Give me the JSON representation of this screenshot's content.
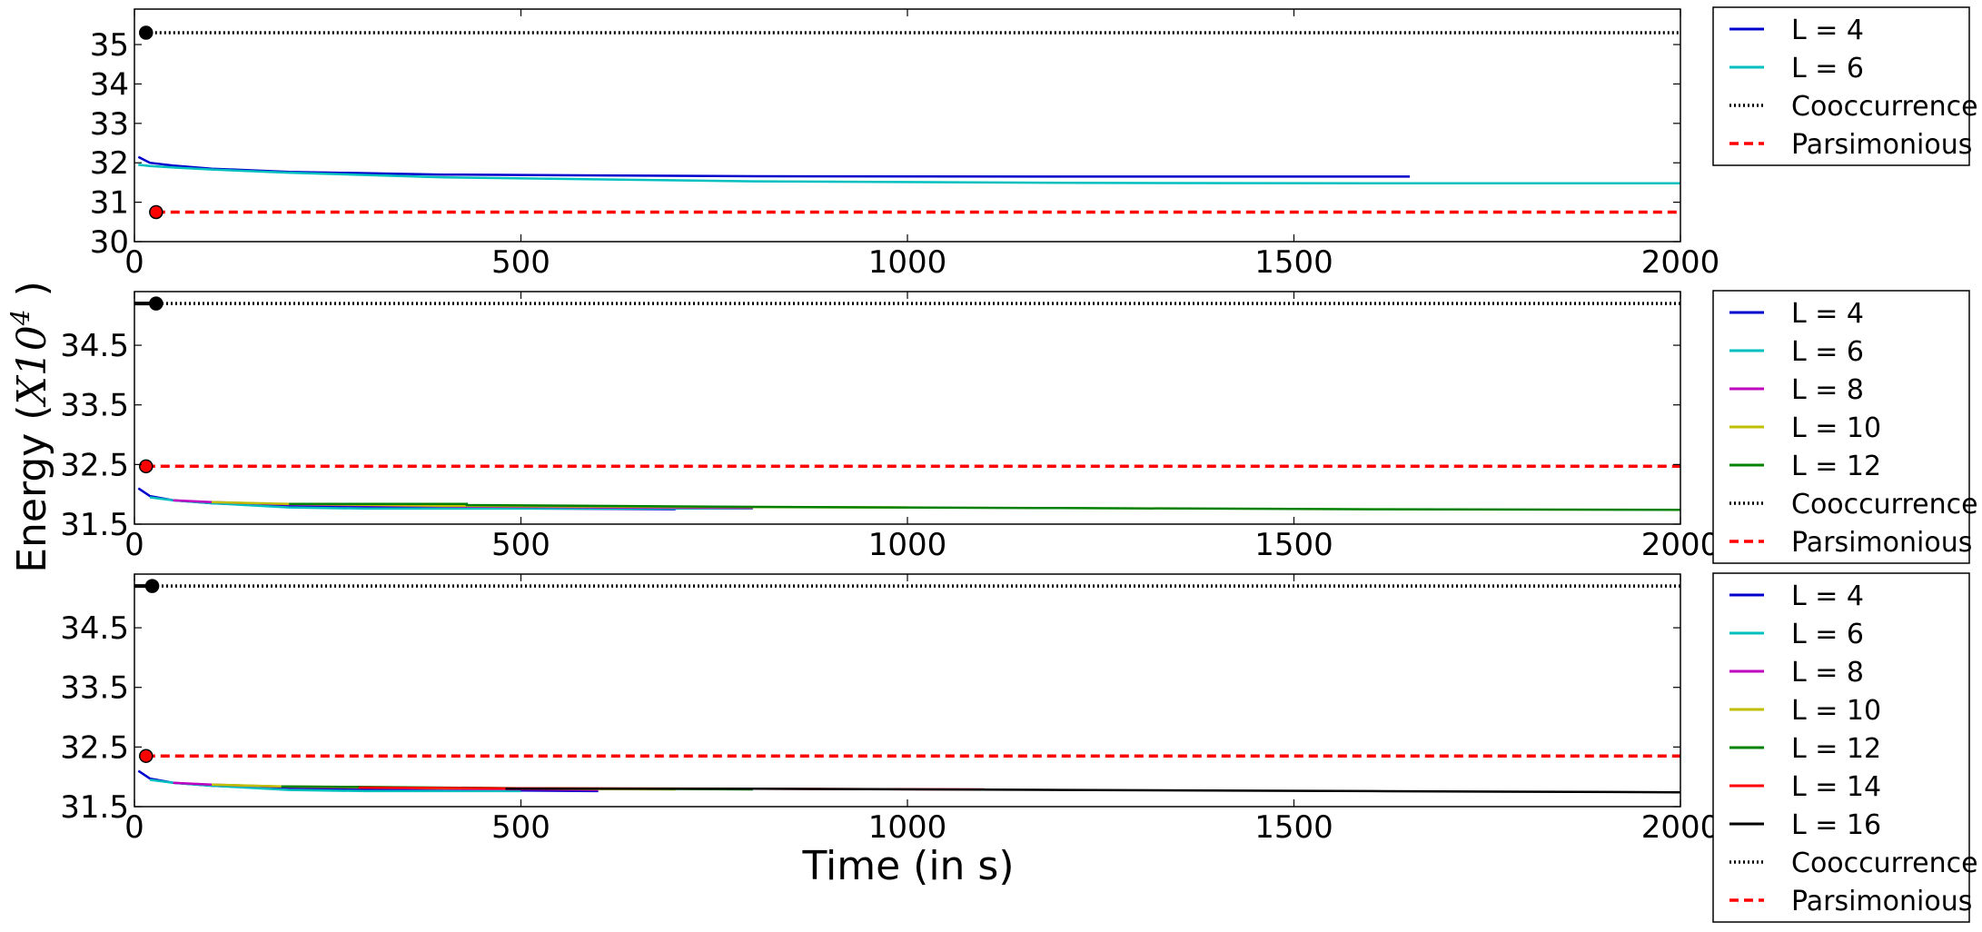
{
  "figure": {
    "xlabel": "Time (in s)",
    "ylabel_prefix": "Energy (",
    "ylabel_math": "X10",
    "ylabel_exp": "4",
    "ylabel_suffix": " )"
  },
  "colors": {
    "L4": "#0000cc",
    "L6": "#00bfbf",
    "L8": "#bf00bf",
    "L10": "#bfbf00",
    "L12": "#008000",
    "L14": "#ff0000",
    "L16": "#000000",
    "cooccurrence": "#000000",
    "parsimonious": "#ff0000"
  },
  "chart_data": [
    {
      "type": "line",
      "xlim": [
        0,
        2000
      ],
      "ylim": [
        30,
        35.9
      ],
      "xticks": [
        0,
        500,
        1000,
        1500,
        2000
      ],
      "xtick_labels": [
        "0",
        "500",
        "1000",
        "1500",
        "2000"
      ],
      "yticks": [
        30,
        31,
        32,
        33,
        34,
        35
      ],
      "ytick_labels": [
        "30",
        "31",
        "32",
        "33",
        "34",
        "35"
      ],
      "grid": false,
      "legend_position": "outside-right",
      "legend": [
        "L = 4",
        "L = 6",
        "Cooccurrence",
        "Parsimonious"
      ],
      "series": [
        {
          "name": "L = 4",
          "color_key": "L4",
          "style": "solid",
          "x": [
            5,
            20,
            50,
            100,
            200,
            400,
            800,
            1200,
            1650
          ],
          "y": [
            32.15,
            32.0,
            31.93,
            31.85,
            31.77,
            31.7,
            31.66,
            31.65,
            31.65
          ]
        },
        {
          "name": "L = 6",
          "color_key": "L6",
          "style": "solid",
          "x": [
            5,
            20,
            50,
            100,
            200,
            400,
            800,
            1200,
            1600,
            2000
          ],
          "y": [
            31.95,
            31.92,
            31.88,
            31.83,
            31.75,
            31.63,
            31.53,
            31.49,
            31.48,
            31.48
          ]
        },
        {
          "name": "Cooccurrence",
          "color_key": "cooccurrence",
          "style": "dotted",
          "x": [
            15,
            2000
          ],
          "y": [
            35.3,
            35.3
          ],
          "marker": {
            "x": 15,
            "y": 35.3,
            "fill": "#000000"
          }
        },
        {
          "name": "Parsimonious",
          "color_key": "parsimonious",
          "style": "dashed",
          "x": [
            28,
            2000
          ],
          "y": [
            30.75,
            30.75
          ],
          "marker": {
            "x": 28,
            "y": 30.75,
            "fill": "#ff0000"
          }
        }
      ]
    },
    {
      "type": "line",
      "xlim": [
        0,
        2000
      ],
      "ylim": [
        31.5,
        35.4
      ],
      "xticks": [
        0,
        500,
        1000,
        1500,
        2000
      ],
      "xtick_labels": [
        "0",
        "500",
        "1000",
        "1500",
        "2000"
      ],
      "yticks": [
        31.5,
        32.5,
        33.5,
        34.5
      ],
      "ytick_labels": [
        "31.5",
        "32.5",
        "33.5",
        "34.5"
      ],
      "grid": false,
      "legend_position": "outside-right",
      "legend": [
        "L = 4",
        "L = 6",
        "L = 8",
        "L = 10",
        "L = 12",
        "Cooccurrence",
        "Parsimonious"
      ],
      "series": [
        {
          "name": "L = 4",
          "color_key": "L4",
          "style": "solid",
          "x": [
            5,
            20,
            50,
            100,
            200,
            400,
            700
          ],
          "y": [
            32.1,
            31.97,
            31.9,
            31.85,
            31.8,
            31.77,
            31.75
          ]
        },
        {
          "name": "L = 6",
          "color_key": "L6",
          "style": "solid",
          "x": [
            20,
            50,
            100,
            200,
            300,
            500,
            800
          ],
          "y": [
            31.95,
            31.9,
            31.85,
            31.78,
            31.76,
            31.76,
            31.76
          ]
        },
        {
          "name": "L = 8",
          "color_key": "L8",
          "style": "solid",
          "x": [
            50,
            100,
            200,
            400,
            600,
            800
          ],
          "y": [
            31.9,
            31.87,
            31.83,
            31.8,
            31.78,
            31.77
          ]
        },
        {
          "name": "L = 10",
          "color_key": "L10",
          "style": "solid",
          "x": [
            100,
            200,
            400,
            700,
            1000
          ],
          "y": [
            31.87,
            31.84,
            31.81,
            31.79,
            31.78
          ]
        },
        {
          "name": "L = 12",
          "color_key": "L12",
          "style": "solid",
          "x": [
            200,
            430,
            430,
            800,
            1200,
            1600,
            2000
          ],
          "y": [
            31.84,
            31.84,
            31.82,
            31.79,
            31.77,
            31.75,
            31.74
          ]
        },
        {
          "name": "Cooccurrence",
          "color_key": "cooccurrence",
          "style": "dotted",
          "x": [
            0,
            2000
          ],
          "y": [
            35.2,
            35.2
          ],
          "marker": {
            "x": 28,
            "y": 35.2,
            "fill": "#000000"
          },
          "solid_lead": [
            0,
            28
          ]
        },
        {
          "name": "Parsimonious",
          "color_key": "parsimonious",
          "style": "dashed",
          "x": [
            15,
            2000
          ],
          "y": [
            32.47,
            32.47
          ],
          "marker": {
            "x": 15,
            "y": 32.47,
            "fill": "#ff0000"
          }
        }
      ]
    },
    {
      "type": "line",
      "xlim": [
        0,
        2000
      ],
      "ylim": [
        31.5,
        35.4
      ],
      "xticks": [
        0,
        500,
        1000,
        1500,
        2000
      ],
      "xtick_labels": [
        "0",
        "500",
        "1000",
        "1500",
        "2000"
      ],
      "yticks": [
        31.5,
        32.5,
        33.5,
        34.5
      ],
      "ytick_labels": [
        "31.5",
        "32.5",
        "33.5",
        "34.5"
      ],
      "grid": false,
      "legend_position": "outside-right",
      "legend": [
        "L = 4",
        "L = 6",
        "L = 8",
        "L = 10",
        "L = 12",
        "L = 14",
        "L = 16",
        "Cooccurrence",
        "Parsimonious"
      ],
      "series": [
        {
          "name": "L = 4",
          "color_key": "L4",
          "style": "solid",
          "x": [
            5,
            20,
            50,
            100,
            200,
            400,
            600
          ],
          "y": [
            32.1,
            31.97,
            31.9,
            31.85,
            31.8,
            31.78,
            31.76
          ]
        },
        {
          "name": "L = 6",
          "color_key": "L6",
          "style": "solid",
          "x": [
            20,
            50,
            100,
            200,
            300,
            500
          ],
          "y": [
            31.95,
            31.9,
            31.85,
            31.78,
            31.76,
            31.76
          ]
        },
        {
          "name": "L = 8",
          "color_key": "L8",
          "style": "solid",
          "x": [
            50,
            100,
            200,
            400,
            600
          ],
          "y": [
            31.9,
            31.87,
            31.83,
            31.8,
            31.78
          ]
        },
        {
          "name": "L = 10",
          "color_key": "L10",
          "style": "solid",
          "x": [
            100,
            190,
            400,
            700
          ],
          "y": [
            31.87,
            31.84,
            31.81,
            31.79
          ]
        },
        {
          "name": "L = 12",
          "color_key": "L12",
          "style": "solid",
          "x": [
            190,
            290,
            500,
            800
          ],
          "y": [
            31.84,
            31.83,
            31.81,
            31.79
          ]
        },
        {
          "name": "L = 14",
          "color_key": "L14",
          "style": "solid",
          "x": [
            290,
            480,
            800,
            1100
          ],
          "y": [
            31.82,
            31.81,
            31.8,
            31.79
          ]
        },
        {
          "name": "L = 16",
          "color_key": "L16",
          "style": "solid",
          "x": [
            480,
            800,
            1200,
            1600,
            2000
          ],
          "y": [
            31.8,
            31.8,
            31.78,
            31.76,
            31.74
          ]
        },
        {
          "name": "Cooccurrence",
          "color_key": "cooccurrence",
          "style": "dotted",
          "x": [
            0,
            2000
          ],
          "y": [
            35.2,
            35.2
          ],
          "marker": {
            "x": 23,
            "y": 35.2,
            "fill": "#000000"
          },
          "solid_lead": [
            0,
            23
          ]
        },
        {
          "name": "Parsimonious",
          "color_key": "parsimonious",
          "style": "dashed",
          "x": [
            15,
            2000
          ],
          "y": [
            32.35,
            32.35
          ],
          "marker": {
            "x": 15,
            "y": 32.35,
            "fill": "#ff0000"
          }
        }
      ]
    }
  ]
}
